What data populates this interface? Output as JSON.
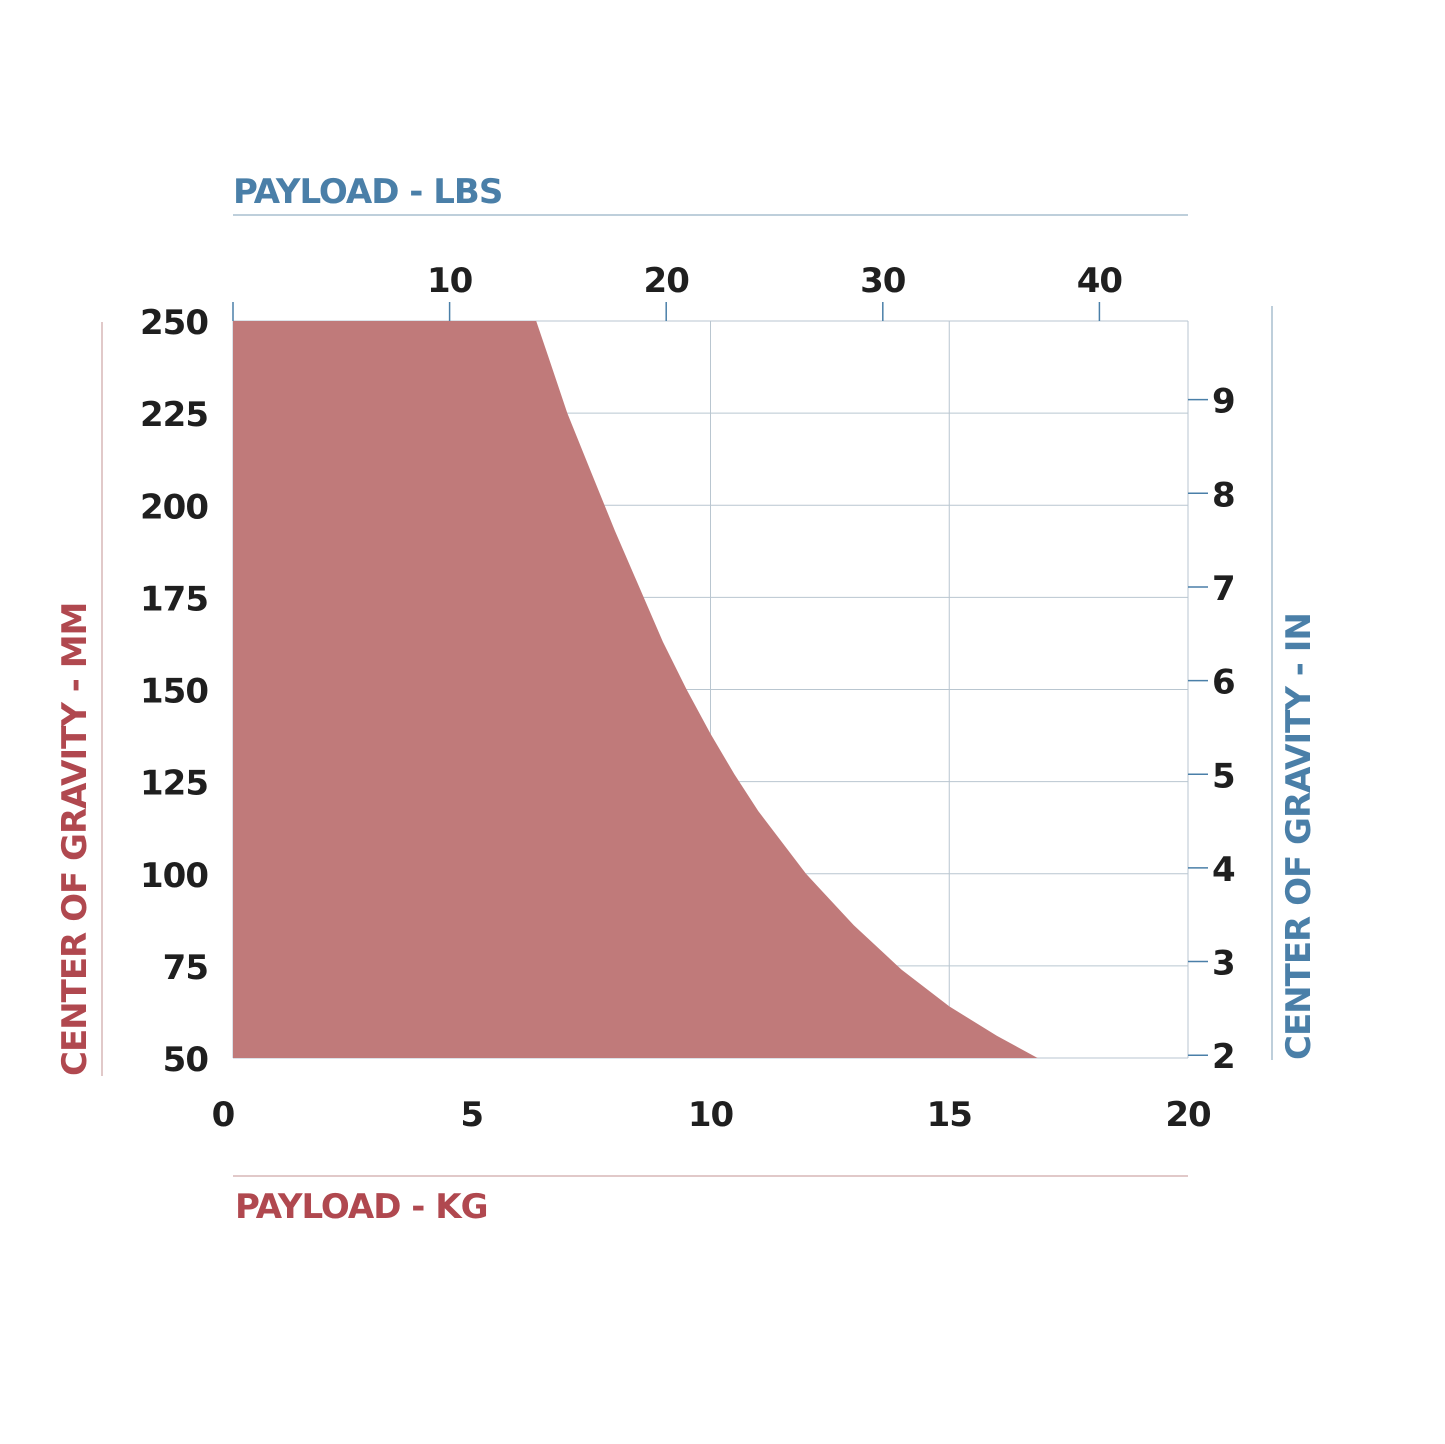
{
  "colors": {
    "kg_mm_accent": "#b0484f",
    "lbs_in_accent": "#4a7fa8",
    "area_fill": "#c07a7a",
    "grid": "#b9c6d0",
    "tick_text": "#1f1f1f"
  },
  "chart_data": {
    "type": "area",
    "title": "",
    "xlabel": "PAYLOAD - KG",
    "ylabel": "CENTER OF GRAVITY - MM",
    "x2label": "PAYLOAD - LBS",
    "y2label": "CENTER OF GRAVITY - IN",
    "xlim": [
      0,
      20
    ],
    "ylim": [
      50,
      250
    ],
    "x2lim": [
      0,
      44.09
    ],
    "y2lim": [
      1.97,
      9.84
    ],
    "grid": true,
    "x_ticks": [
      0,
      5,
      10,
      15,
      20
    ],
    "y_ticks": [
      50,
      75,
      100,
      125,
      150,
      175,
      200,
      225,
      250
    ],
    "x2_ticks": [
      10,
      20,
      30,
      40
    ],
    "y2_ticks": [
      2,
      3,
      4,
      5,
      6,
      7,
      8,
      9
    ],
    "x_tick_labels": [
      "0",
      "5",
      "10",
      "15",
      "20"
    ],
    "y_tick_labels": [
      "50",
      "75",
      "100",
      "125",
      "150",
      "175",
      "200",
      "225",
      "250"
    ],
    "x2_tick_labels": [
      "10",
      "20",
      "30",
      "40"
    ],
    "y2_tick_labels": [
      "2",
      "3",
      "4",
      "5",
      "6",
      "7",
      "8",
      "9"
    ],
    "series": [
      {
        "x": [
          0,
          6.35,
          6.6,
          7.0,
          7.5,
          8.0,
          8.5,
          9.0,
          9.5,
          10.0,
          10.5,
          11.0,
          12.0,
          13.0,
          14.0,
          15.0,
          16.0,
          16.85
        ],
        "y": [
          250,
          250,
          240.5,
          225,
          209,
          193,
          178,
          163,
          150,
          138,
          127,
          117,
          100,
          86,
          74,
          64,
          56,
          50
        ]
      }
    ]
  }
}
